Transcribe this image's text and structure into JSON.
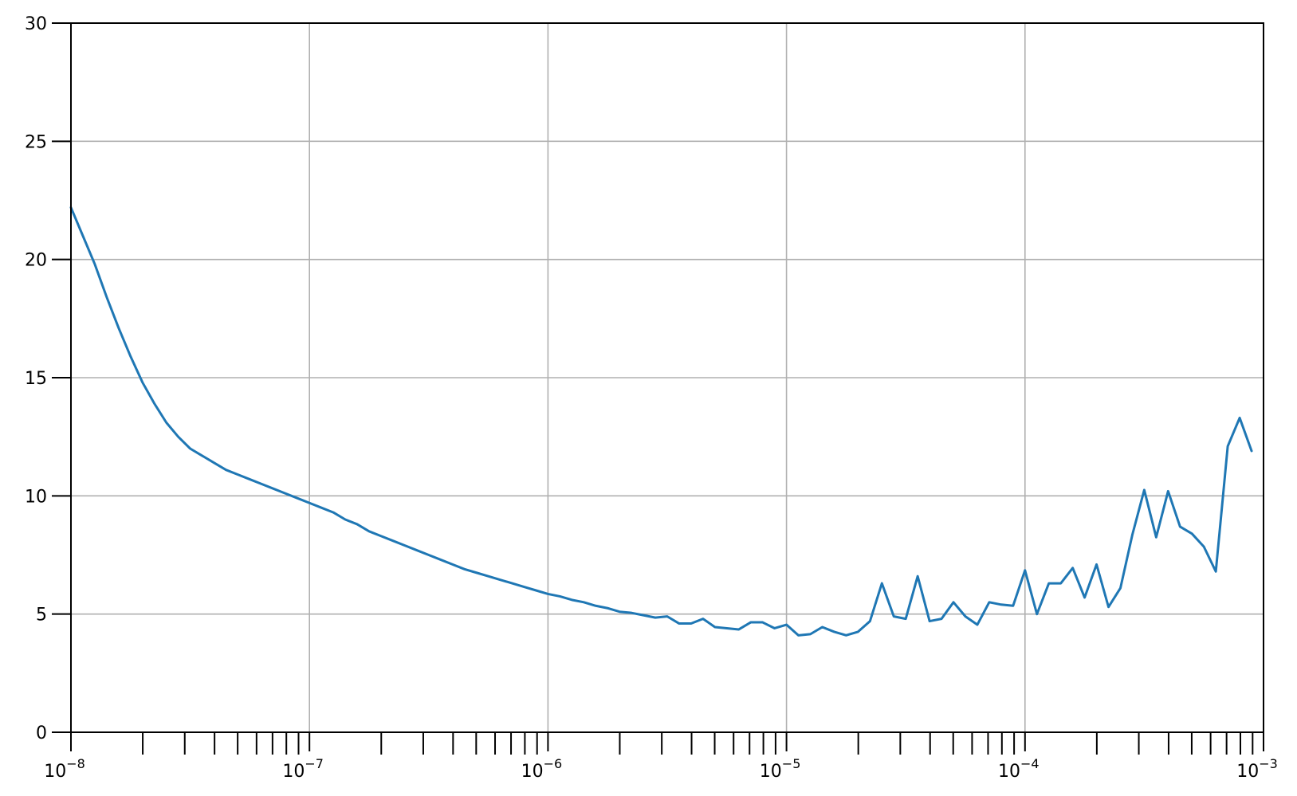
{
  "chart_data": {
    "type": "line",
    "xscale": "log",
    "xlim": [
      1e-08,
      0.001
    ],
    "ylim": [
      0,
      30
    ],
    "grid": true,
    "title": "",
    "xlabel": "",
    "ylabel": "",
    "yticks": [
      0,
      5,
      10,
      15,
      20,
      25,
      30
    ],
    "ytick_labels": [
      "0",
      "5",
      "10",
      "15",
      "20",
      "25",
      "30"
    ],
    "xticks_major": [
      {
        "value": 1e-08,
        "base": "10",
        "exp": "−8"
      },
      {
        "value": 1e-07,
        "base": "10",
        "exp": "−7"
      },
      {
        "value": 1e-06,
        "base": "10",
        "exp": "−6"
      },
      {
        "value": 1e-05,
        "base": "10",
        "exp": "−5"
      },
      {
        "value": 0.0001,
        "base": "10",
        "exp": "−4"
      },
      {
        "value": 0.001,
        "base": "10",
        "exp": "−3"
      }
    ],
    "series": [
      {
        "color": "#1f77b4",
        "x": [
          1e-08,
          1.122e-08,
          1.259e-08,
          1.413e-08,
          1.585e-08,
          1.778e-08,
          1.995e-08,
          2.239e-08,
          2.512e-08,
          2.818e-08,
          3.162e-08,
          3.548e-08,
          3.981e-08,
          4.467e-08,
          5.012e-08,
          5.623e-08,
          6.31e-08,
          7.079e-08,
          7.943e-08,
          8.913e-08,
          1e-07,
          1.122e-07,
          1.259e-07,
          1.413e-07,
          1.585e-07,
          1.778e-07,
          1.995e-07,
          2.239e-07,
          2.512e-07,
          2.818e-07,
          3.162e-07,
          3.548e-07,
          3.981e-07,
          4.467e-07,
          5.012e-07,
          5.623e-07,
          6.31e-07,
          7.079e-07,
          7.943e-07,
          8.913e-07,
          1e-06,
          1.122e-06,
          1.259e-06,
          1.413e-06,
          1.585e-06,
          1.778e-06,
          1.995e-06,
          2.239e-06,
          2.512e-06,
          2.818e-06,
          3.162e-06,
          3.548e-06,
          3.981e-06,
          4.467e-06,
          5.012e-06,
          5.623e-06,
          6.31e-06,
          7.079e-06,
          7.943e-06,
          8.913e-06,
          1e-05,
          1.122e-05,
          1.259e-05,
          1.413e-05,
          1.585e-05,
          1.778e-05,
          1.995e-05,
          2.239e-05,
          2.512e-05,
          2.818e-05,
          3.162e-05,
          3.548e-05,
          3.981e-05,
          4.467e-05,
          5.012e-05,
          5.623e-05,
          6.31e-05,
          7.079e-05,
          7.943e-05,
          8.913e-05,
          0.0001,
          0.0001122,
          0.0001259,
          0.0001413,
          0.0001585,
          0.0001778,
          0.0001995,
          0.0002239,
          0.0002512,
          0.0002818,
          0.0003162,
          0.0003548,
          0.0003981,
          0.0004467,
          0.0005012,
          0.0005623,
          0.000631,
          0.0007079,
          0.0007943,
          0.0008913
        ],
        "y": [
          22.2,
          21.0,
          19.8,
          18.4,
          17.1,
          15.9,
          14.8,
          13.9,
          13.1,
          12.5,
          12.0,
          11.7,
          11.4,
          11.1,
          10.9,
          10.7,
          10.5,
          10.3,
          10.1,
          9.9,
          9.7,
          9.5,
          9.3,
          9.0,
          8.8,
          8.5,
          8.3,
          8.1,
          7.9,
          7.7,
          7.5,
          7.3,
          7.1,
          6.9,
          6.75,
          6.6,
          6.45,
          6.3,
          6.15,
          6.0,
          5.85,
          5.75,
          5.6,
          5.5,
          5.35,
          5.25,
          5.1,
          5.05,
          4.95,
          4.85,
          4.9,
          4.6,
          4.6,
          4.8,
          4.45,
          4.4,
          4.35,
          4.65,
          4.65,
          4.4,
          4.55,
          4.1,
          4.15,
          4.45,
          4.25,
          4.1,
          4.25,
          4.7,
          6.3,
          4.9,
          4.8,
          6.6,
          4.7,
          4.8,
          5.5,
          4.9,
          4.55,
          5.5,
          5.4,
          5.35,
          6.85,
          5.0,
          6.3,
          6.3,
          6.95,
          5.7,
          7.1,
          5.3,
          6.1,
          8.35,
          10.25,
          8.25,
          10.2,
          8.7,
          8.4,
          7.85,
          6.8,
          12.1,
          13.3,
          11.9
        ]
      }
    ]
  }
}
